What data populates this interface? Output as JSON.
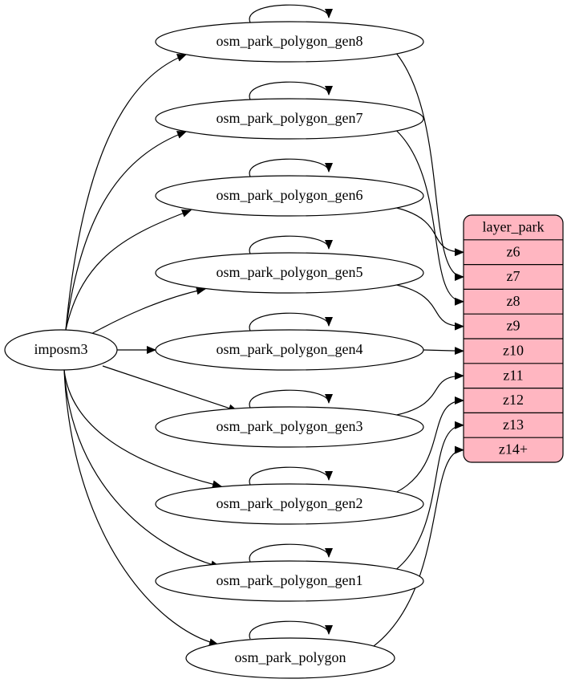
{
  "source": {
    "label": "imposm3"
  },
  "tables": [
    {
      "label": "osm_park_polygon_gen8"
    },
    {
      "label": "osm_park_polygon_gen7"
    },
    {
      "label": "osm_park_polygon_gen6"
    },
    {
      "label": "osm_park_polygon_gen5"
    },
    {
      "label": "osm_park_polygon_gen4"
    },
    {
      "label": "osm_park_polygon_gen3"
    },
    {
      "label": "osm_park_polygon_gen2"
    },
    {
      "label": "osm_park_polygon_gen1"
    },
    {
      "label": "osm_park_polygon"
    }
  ],
  "record": {
    "title": "layer_park",
    "fields": [
      "z6",
      "z7",
      "z8",
      "z9",
      "z10",
      "z11",
      "z12",
      "z13",
      "z14+"
    ]
  }
}
